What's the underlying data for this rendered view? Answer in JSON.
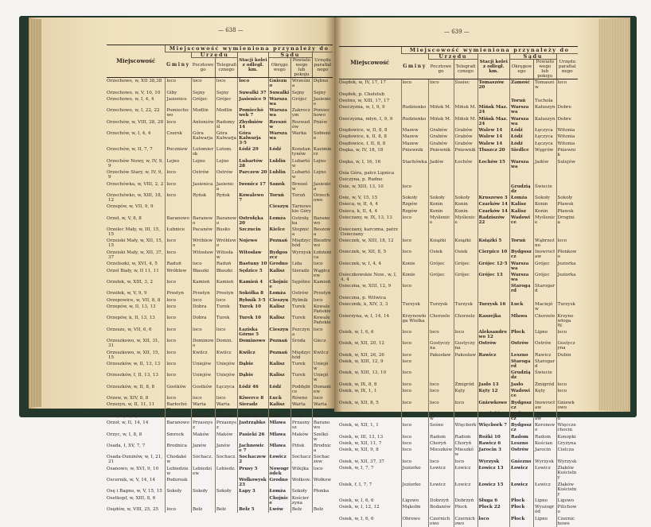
{
  "header": {
    "span_title": "Miejscowość wymieniona przynależy do",
    "col_place": "Miejscowość",
    "col_gmina": "Gminy",
    "group_urzad": "Urzędu",
    "col_poczt": "Pocztowego",
    "col_telegr": "Telegraficznego",
    "col_stacja": "Stacji kolei z odległ. km.",
    "group_sad": "Sądu",
    "col_okreg": "Okręgowego",
    "col_powiat": "Powiatowego lub pokoju",
    "col_paraf": "Urzędu parafialnego"
  },
  "pages": [
    {
      "number": "— 638 —",
      "rows": [
        [
          "Orzechowo, w, XII 38,38",
          "loco",
          "loco",
          "loco",
          "loco",
          "Gniezno",
          "Września",
          "Dębno"
        ],
        [
          "Orzechowo, w, V, 10, 10",
          "Giby",
          "Sejny",
          "Sejny",
          "Suwałki 37",
          "Suwałki",
          "Sejny",
          "Sejny"
        ],
        [
          "Orzechowo, w, I, 4, 4",
          "Jasienice",
          "Grójec",
          "Grójec",
          "Jasienice 9",
          "Warszawa",
          "Grójec",
          "Jasienice"
        ],
        [
          "Orzechowo, w, I, 22, 22",
          "Pomiechowo",
          "Modlin",
          "Modlin",
          "Pomiechówek 7",
          "Warszawa",
          "Zakroczym",
          "Pomiechowo"
        ],
        [
          "Orzechów, w, VIII, 28, 28",
          "loco",
          "Antoniów",
          "Radomyśl",
          "Zbydniów 14",
          "Rzeszów",
          "Rozwadów",
          "Pniów"
        ],
        [
          "Orzechów, w, I, 4, 4",
          "Czersk",
          "Góra Kalwarja",
          "Góra Kalwarja",
          "Góra Kalwarja 3·5",
          "Warszawa",
          "Warka",
          "Sobienie"
        ],
        [
          "Orzechów, w, II, 7, 7",
          "Poczniew",
          "Lutomiersk",
          "Lutom.",
          "Łódź 29",
          "Łódź",
          "Konstantynów",
          "Kazimierz"
        ],
        [
          "Orzechów Nowy, w, IV, 9, 9",
          "Lejno",
          "Lejno",
          "Lejno",
          "Lubartów 28",
          "Lublin",
          "Lubartów",
          "Lejno"
        ],
        [
          "Orzechów Stary, w, IV, 9, 9",
          "loco",
          "Ostrów",
          "Ostrów",
          "Parczew 20",
          "Lublin",
          "Lubartów",
          "Lejno"
        ],
        [
          "Orzechówka, w, VIII, 2, 2",
          "loco",
          "Jasienica",
          "Jasienica",
          "Iwonicz 17",
          "Sanok",
          "Brzozów",
          "Jasienica"
        ],
        [
          "Orzechówko, w, XIII, 18, 12",
          "loco",
          "Ryńsk",
          "Ryńsk",
          "Kowalewo 7",
          "Toruń",
          "Toruń",
          "Orzechowo"
        ],
        [
          "Orzegów, w, VII, 9, 9",
          "",
          "",
          "",
          "",
          "Cieszyn",
          "Tarnowskie Góry",
          ""
        ],
        [
          "Orzeł, w, V, 8, 8",
          "Baranowo",
          "Baranowo",
          "Baranowo",
          "Ostrołęka 20",
          "Łomża",
          "Ostrołęka",
          "Baranowo"
        ],
        [
          "Orzelec Mały, w, III, 15, 15",
          "Łubnice",
          "Pacanów",
          "Busko",
          "Szczucin",
          "Kielce",
          "Stopnica",
          "Beszowa"
        ],
        [
          "Orzeiski Mały, w, XII, 15, 15",
          "loco",
          "Wróblewo",
          "Wróblewo",
          "Nojewo",
          "Poznań",
          "Międzychód",
          "Biezdrowo"
        ],
        [
          "Orzeiski Mały, w, XII, 37, 37",
          "loco",
          "Witosław",
          "Witosław",
          "Witosław",
          "Bydgoszcz",
          "Wyrzysk",
          "Łobżenica"
        ],
        [
          "Orzeliszki, w, XVI, 4, 5",
          "Raduń",
          "loco",
          "Raduń",
          "Bastuny 10",
          "Grodno",
          "Lida",
          "loco"
        ],
        [
          "Orzeł Biały, w, II 11, 11",
          "Wróblew",
          "Błaszki",
          "Błaszki",
          "Sędzice 5",
          "Kalisz",
          "Sieradz",
          "Wągłczew"
        ],
        [
          "Orzełek, w, XIII, 3, 2",
          "loco",
          "Kamień",
          "Kamień",
          "Kamień 4",
          "Chojnice",
          "Sępólno",
          "Kamień"
        ],
        [
          "Orzełek, w, V, 9, 9",
          "Prostyn",
          "Prostyn",
          "Prostyn",
          "Sokółka 8",
          "Łomża",
          "Ostrów",
          "Prostyn"
        ],
        [
          "Orzepowice, w, VII, 8, 8",
          "loco",
          "loco",
          "loco",
          "Rybnik 3·5",
          "Cieszyn",
          "Rybnik",
          "loco"
        ],
        [
          "Orzepów, w, II, 13, 13",
          "loco",
          "Dobra",
          "Turek",
          "Turek 10",
          "Kalisz",
          "Turek",
          "Kowale Pańskie"
        ],
        [
          "Orzepów, k, II, 13, 13",
          "loco",
          "Dobra",
          "Turek",
          "Turek 10",
          "Kalisz",
          "Turek",
          "Kowale Pańskie"
        ],
        [
          "Orzesze, w, VII, 6, 6",
          "loco",
          "loco",
          "loco",
          "Łaziska Górne 5",
          "Cieszyn",
          "Pszczyna",
          "loco"
        ],
        [
          "Orzeszkowo, w, XII, 31, 31",
          "loco",
          "Dominowo",
          "Domin.",
          "Dominowo",
          "Poznań",
          "Środa",
          "Giecz"
        ],
        [
          "Orzeszkowo, w, XII, 15, 15",
          "loco",
          "Kwilcz",
          "Kwilcz",
          "Kwilcz",
          "Poznań",
          "Międzychód",
          "Kwilcz"
        ],
        [
          "Orzeszków, w, II, 13, 13",
          "loco",
          "Uniejów",
          "Uniejów",
          "Dąbie",
          "Kalisz",
          "Turek",
          "Uniejów"
        ],
        [
          "Orzeszków, f, II, 13, 13",
          "loco",
          "Uniejów",
          "Uniejów",
          "Dąbie",
          "Kalisz",
          "Turek",
          "Uniejów"
        ],
        [
          "Orzeszków, w, II, 8, 8",
          "Gostków",
          "Gostków",
          "Łęczyca",
          "Łódź 46",
          "Łódź",
          "Poddębice",
          "Domaniew"
        ],
        [
          "Orzew, w, XIV, 8, 8",
          "loco",
          "loco",
          "loco",
          "Kiwerce 8",
          "Łuck",
          "Równo",
          "loco"
        ],
        [
          "Orzezyn, w, II, 11, 11",
          "Barłochów",
          "Warta",
          "Warta",
          "Sieradz",
          "Kalisz",
          "Warta",
          "Warta"
        ],
        [
          "Orzk, w, II, 5, 5",
          "Dłutów",
          "Dłutów",
          "Dłutów",
          "Łask 18",
          "Łódź",
          "Łask",
          "loco"
        ],
        [
          "Orzoł, w, II, 14, 14",
          "Baranowo",
          "Przasnysz",
          "Przasnysz",
          "Jastrząbko",
          "Mława",
          "Przasnysz",
          "Baranowo"
        ],
        [
          "Orzyc, w, I, 8, 8",
          "Smrock",
          "Maków",
          "Maków",
          "Pasieki 26",
          "Mława",
          "Maków",
          "Szelków"
        ],
        [
          "Osada, I, XV, 7, 7",
          "Brodnica",
          "Janów",
          "Janów",
          "Jachnowice 7",
          "Mława",
          "Pińsk",
          "Brodnica"
        ],
        [
          "Osada-Duninów, w, I, 21, 21",
          "Chodaków",
          "Sochacz.",
          "Sochacz.",
          "Sochaczew 2",
          "Łowicz",
          "Sochacz.",
          "Sochaczew"
        ],
        [
          "Osanowo, w, XVI, 9, 10",
          "Lebiedziew",
          "Lebiedziew",
          "Lebiedz.",
          "Prusy 5",
          "Nowogródek",
          "Wilejka",
          "loco"
        ],
        [
          "Oscernik, w, V, 14, 14",
          "Podorosk",
          "",
          "",
          "Wołkowysk 23",
          "Grodno",
          "Wołkow.",
          "Wołkow."
        ],
        [
          "Osę i Bagno, w, V, 15, 15",
          "Sokoły",
          "Sokoły",
          "Sokoły",
          "Łapy 3",
          "Łomża",
          "Sokoły",
          "Płonka"
        ],
        [
          "Osetkopf, w, XIII, 8, 6",
          "",
          "",
          "",
          "",
          "Chojnice",
          "Kościerzyna",
          ""
        ],
        [
          "Osędów, w, VIII, 25, 25",
          "loco",
          "Bełz",
          "Bełz",
          "Bełz 5",
          "Lwów",
          "Bełz",
          "Bełz"
        ]
      ]
    },
    {
      "number": "— 639 —",
      "rows": [
        [
          "Osędek, w, IV, 17, 17",
          "loco",
          "loco",
          "Susiec",
          "Tomaszów 20",
          "Zamość",
          "Tomaszów",
          "loco"
        ],
        [
          "Osędek, p. Chełstub",
          "",
          "",
          "",
          "",
          "",
          "",
          ""
        ],
        [
          "Osetno, w, XIII, 17, 17",
          "",
          "",
          "",
          "",
          "Toruń",
          "Tuchola",
          ""
        ],
        [
          "Oseczyzna, w, I, 9, 9",
          "Rudzienko",
          "Mińsk M.",
          "Mińsk M.",
          "Mińsk Maz. 24",
          "Warszawa",
          "Kałuszyn",
          "Dobre"
        ],
        [
          "Oseczyzna, młyn, I, 9, 9",
          "Rudzienko",
          "Mińsk M.",
          "Mińsk M.",
          "Mińsk Maz. 24",
          "Warszawa",
          "Kałuszyn",
          "Dobre"
        ],
        [
          "Osędowice, w, II, 8, 8",
          "Mazew",
          "Grabów",
          "Grabów",
          "Walew 14",
          "Łódź",
          "Łęczyca",
          "Witonia"
        ],
        [
          "Osędowice, k, II, 8, 8",
          "Mazew",
          "Grabów",
          "Grabów",
          "Walew 14",
          "Łódź",
          "Łęczyca",
          "Witonia"
        ],
        [
          "Osędowice, f, II, 8, 8",
          "Mazew",
          "Grabów",
          "Grabów",
          "Walew 14",
          "Łódź",
          "Łęczyca",
          "Witonia"
        ],
        [
          "Osęka, w, IV, 18, 18",
          "Pniewnik",
          "Pniewnik",
          "Pniewnik",
          "Tłuszcz 20",
          "Siedlce",
          "Węgrów",
          "Pniewnik"
        ],
        [
          "Osęka, w, I, 16, 16",
          "Stachówka",
          "Jadów",
          "Łochów",
          "Łochów 15",
          "Warszawa",
          "Jadów",
          "Sulejów"
        ],
        [
          "Osia Góra, patrz Lipnica",
          "",
          "",
          "",
          "",
          "",
          "",
          ""
        ],
        [
          "Osiczyna, p. Rudno",
          "",
          "",
          "",
          "",
          "",
          "",
          ""
        ],
        [
          "Osie, w, XIII, 13, 10",
          "loco",
          "",
          "",
          "",
          "Grudziądz",
          "Świecie",
          ""
        ],
        [
          "Osie, w, V, 15, 15",
          "Sokoły",
          "Sokoły",
          "Sokoły",
          "Kruszewo 3",
          "Łomża",
          "Sokoły",
          "Sokoły"
        ],
        [
          "Osieca, w, II, 4, 4",
          "Rzgów",
          "Konin",
          "Konin",
          "Czarków 14",
          "Kalisz",
          "Konin",
          "Pławsk"
        ],
        [
          "Osieca, k, II, 4, 4",
          "Rzgów",
          "Konin",
          "Konin",
          "Czarków 14",
          "Kalisz",
          "Konin",
          "Pławsk"
        ],
        [
          "Osieczany, w, IX, 13, 13",
          "loco",
          "Myślenice",
          "Myślenice",
          "Radziszów 22",
          "Wadowice",
          "Myślenice",
          "Droginia"
        ],
        [
          "Osieczany, karczma, patrz Osieczany",
          "",
          "",
          "",
          "",
          "",
          "",
          ""
        ],
        [
          "Osieczek, w, XIII, 18, 12",
          "loco",
          "Książki",
          "Książki",
          "Książki 5",
          "Toruń",
          "Wąbrzeźno",
          "loco"
        ],
        [
          "Osieczek, w, XII, 8, 5",
          "loco",
          "Osiek",
          "Osiek",
          "Cierpice 10",
          "Bydgoszcz",
          "Inowrocław",
          "Płonkowo"
        ],
        [
          "Osieczek, w, I, 4, 4",
          "Konie",
          "Grójec",
          "Grójec",
          "Grójec 12·5",
          "Warszawa",
          "Grójec",
          "Jeziorka"
        ],
        [
          "Osieczkowskie Now., w, I, 4, 4",
          "Konie",
          "Grójec",
          "Grójec",
          "Grójec 13",
          "Warszawa",
          "Grójec",
          "Jeziorka"
        ],
        [
          "Osieczna, w, XIII, 12, 9",
          "loco",
          "",
          "",
          "",
          "Starogard",
          "Starogard",
          ""
        ],
        [
          "Osieczna, p. Witwica",
          "",
          "",
          "",
          "",
          "",
          "",
          ""
        ],
        [
          "Osiecznik, k, XIV, 3, 3",
          "Turzysk",
          "Turzysk",
          "Turzysk",
          "Turzysk 16",
          "Łuck",
          "Maciejów",
          "Turzysk"
        ],
        [
          "Osierzyna, w, I, 14, 14",
          "Krzynowłoga Wielka",
          "Chorzele",
          "Chorzele",
          "Kaszejka",
          "Mława",
          "Chorzele",
          "Krzynowłoga W."
        ],
        [
          "Osiek, w, I, 6, 6",
          "loco",
          "loco",
          "loco",
          "Aleksandrowo 12",
          "Płock",
          "Lipno",
          "loco"
        ],
        [
          "Osiek, w, XII, 20, 12",
          "loco",
          "Gostyczyna",
          "Gostyczyna",
          "Ostrów",
          "Ostrów",
          "Ostrów",
          "Gostyczyna"
        ],
        [
          "Osiek, w, XII, 26, 26",
          "loco",
          "Pakosław",
          "Pakosław",
          "Rawicz",
          "Leszno",
          "Rawicz",
          "Dubin"
        ],
        [
          "Osiek, w, XIII, 12, 9",
          "loco",
          "",
          "",
          "",
          "Starogard",
          "Starogard",
          ""
        ],
        [
          "Osiek, w, XIII, 13, 10",
          "loco",
          "",
          "",
          "",
          "Grudziądz",
          "Świecie",
          ""
        ],
        [
          "Osiek, w, IX, 8, 8",
          "loco",
          "loco",
          "Żmigród",
          "Jasło 13",
          "Jasło",
          "Żmigród",
          "loco"
        ],
        [
          "Osiek, w, IX, 1, 1",
          "loco",
          "loco",
          "Kęty",
          "Kęty 12",
          "Wadowice",
          "Kęty",
          "loco"
        ],
        [
          "Osiek, w, XII, 8, 5",
          "loco",
          "loco",
          "loco",
          "Gniewkowo",
          "Bydgoszcz",
          "Inowrocław",
          "Gniewkowo"
        ],
        [
          "Osiek, os., XII, 8, 5",
          "loco",
          "Inowrocław",
          "Inowrocł.",
          "Przełubie 9",
          "Bydgoszcz",
          "Inowrocław",
          "Płonkowo"
        ],
        [
          "Osiek, w, XII, 1, 1",
          "loco",
          "Sośno",
          "Więcbork",
          "Więcbork 7",
          "Bydgoszcz",
          "Koronowo",
          "Więcczechocin"
        ],
        [
          "Osiek, w, III, 13, 13",
          "loco",
          "Radom",
          "Radom",
          "Rożki 10",
          "Radom",
          "Radom",
          "Konopki"
        ],
        [
          "Osiek, w, XII, 11, 7",
          "loco",
          "Choryń",
          "Choryń",
          "Rawicz 6",
          "Leszno",
          "Kościan",
          "Gryżyna"
        ],
        [
          "Osiek, w, XII, 9, 8",
          "loco",
          "Mieszków",
          "Mieszków",
          "Jarocin 3",
          "Ostrów",
          "Jarocin",
          "Cielcza"
        ],
        [
          "Osiek, w, XII, 37, 37",
          "loco",
          "loco",
          "loco",
          "Wyrzysk",
          "Gniezno",
          "Wyrzysk",
          "Wyrzysk"
        ],
        [
          "Osiek, w, I, 7, 7",
          "Jeziorko",
          "Łowicz",
          "Łowicz",
          "Łowicz 13",
          "Łowicz",
          "Łowicz",
          "Złaków Kościelny"
        ],
        [
          "Osiek, f, I, 7, 7",
          "Jeziorko",
          "Łowicz",
          "Łowicz",
          "Łowicz 15",
          "Łowicz",
          "Łowicz",
          "Złaków Kościelny"
        ],
        [
          "Osiek, w, I, 6, 6",
          "Ligowo",
          "Dobrzyń",
          "Dobrzyń",
          "Sługa 6",
          "Płock",
          "Lipno",
          "Ligowo"
        ],
        [
          "Osiek, w, I, 12, 12",
          "Mąkolin",
          "Bodanów",
          "Płock",
          "Płock 22",
          "Płock",
          "Wyszogród",
          "Pilichowo"
        ],
        [
          "Osiek, w, I, 6, 6",
          "Obrowo",
          "Czernichowo",
          "Czernichowo",
          "loco",
          "Płock",
          "Lipno",
          "Czernichowo"
        ]
      ]
    }
  ]
}
